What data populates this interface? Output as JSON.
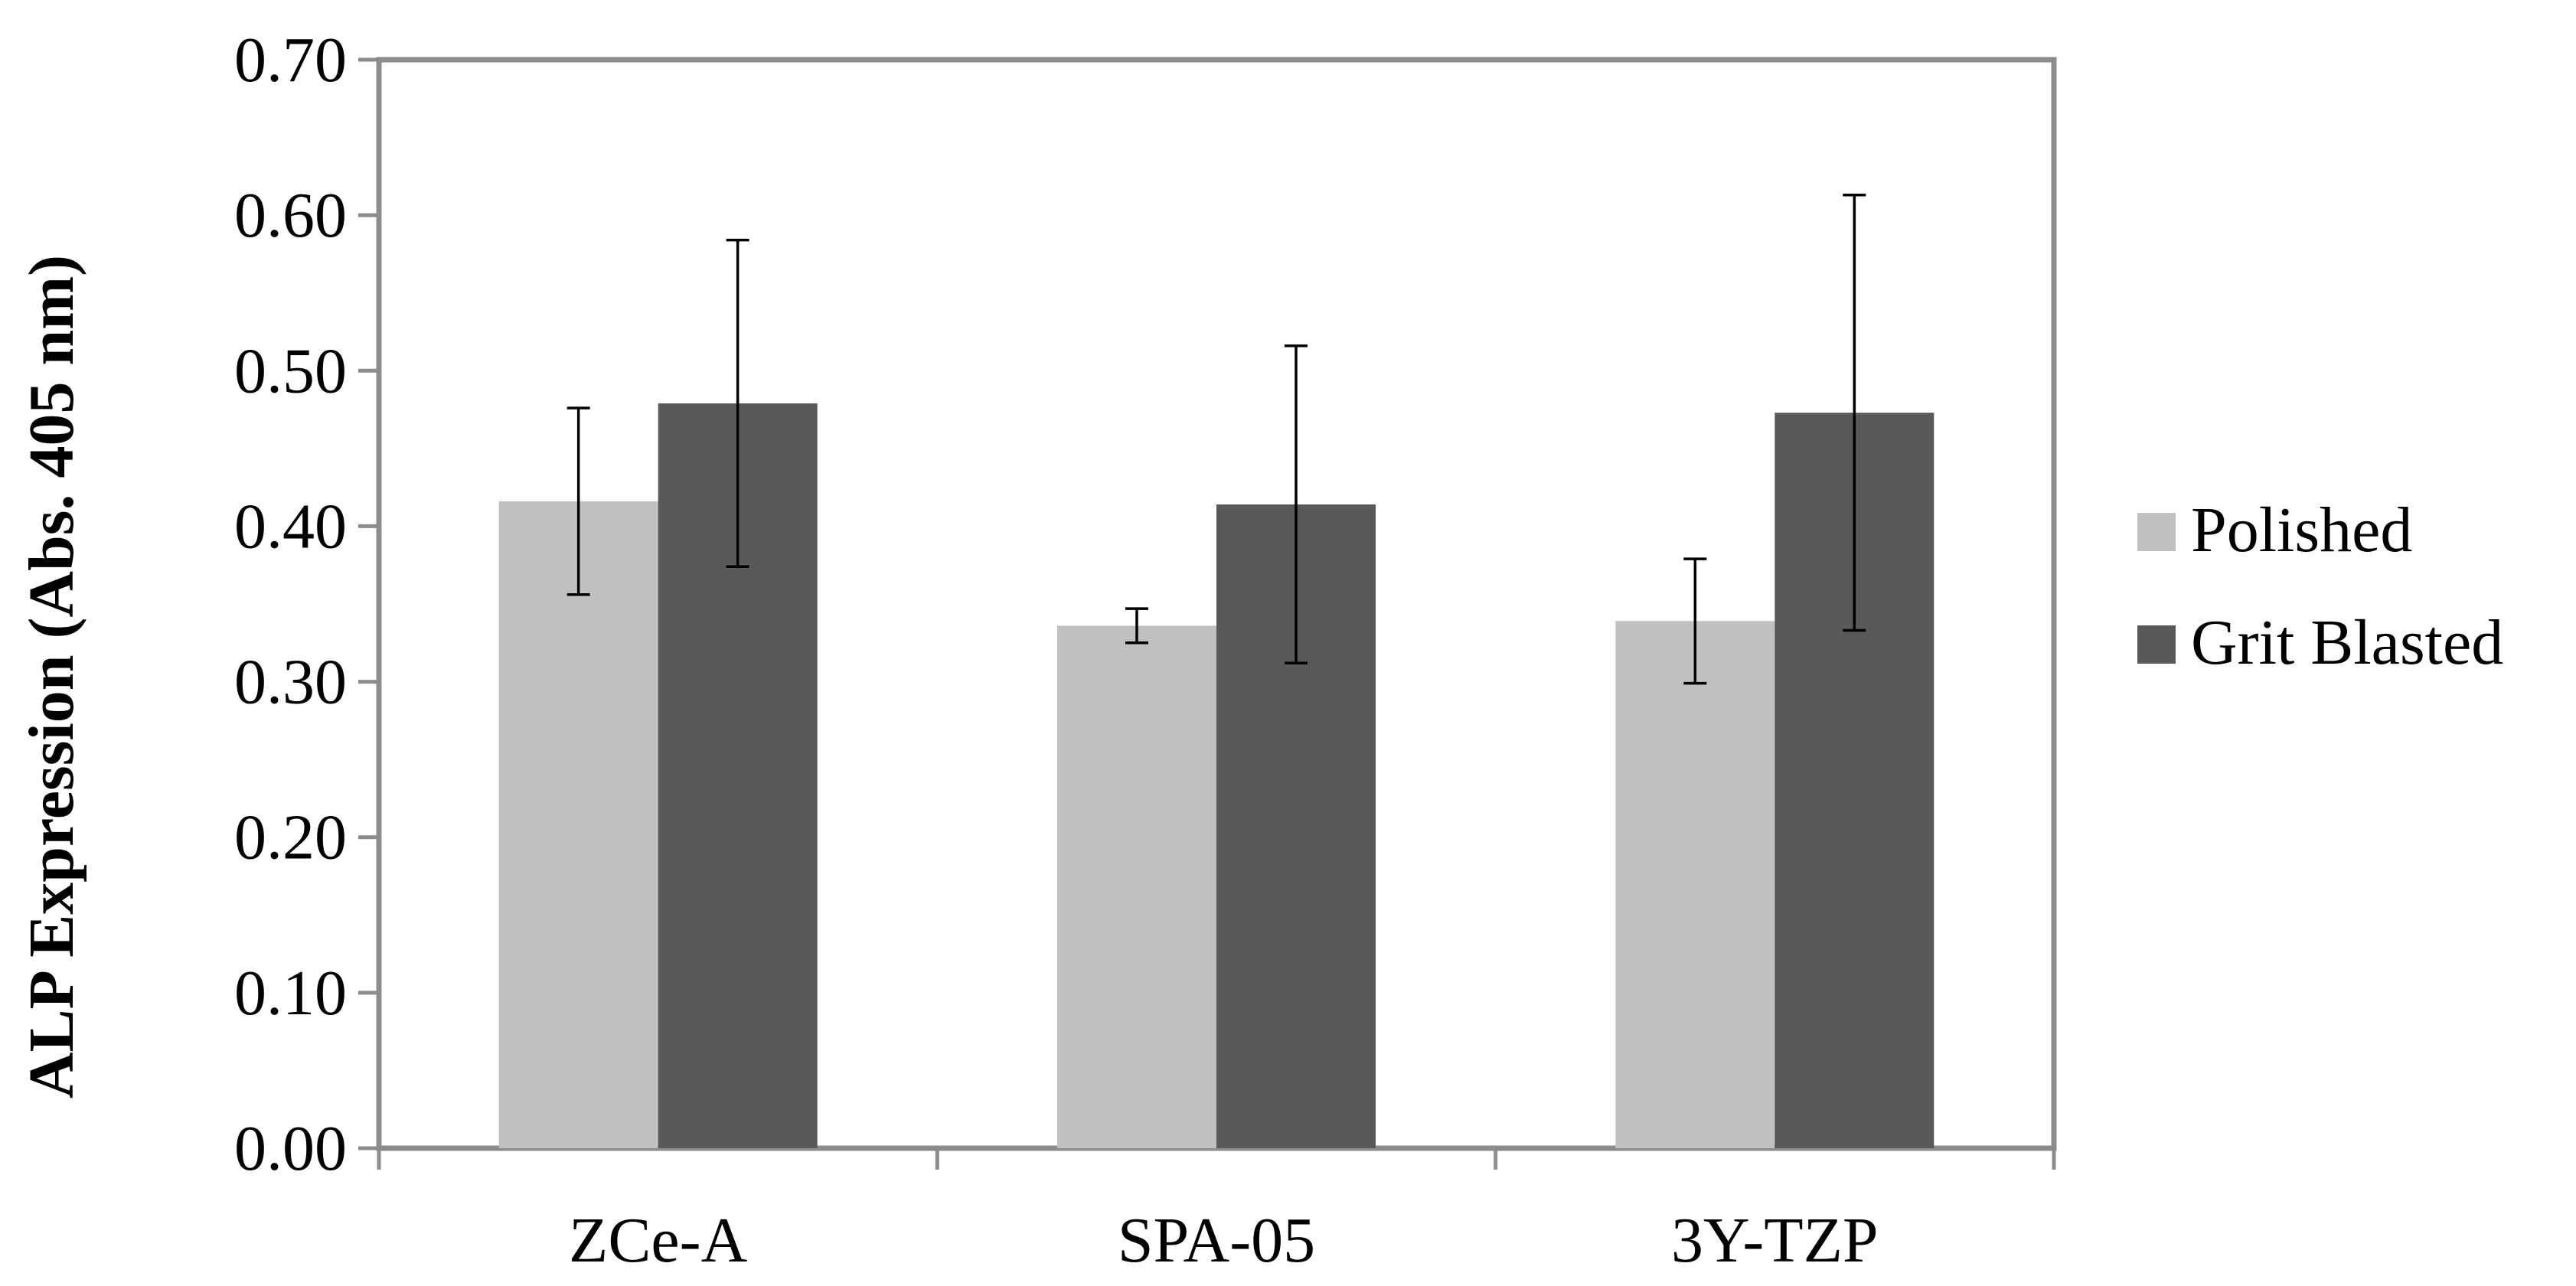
{
  "chart_data": {
    "type": "bar",
    "title": "",
    "xlabel": "",
    "ylabel": "ALP Expression (Abs. 405 nm)",
    "categories": [
      "ZCe-A",
      "SPA-05",
      "3Y-TZP"
    ],
    "series": [
      {
        "name": "Polished",
        "color": "#c0c0c0",
        "values": [
          0.416,
          0.336,
          0.339
        ],
        "errors": [
          0.06,
          0.011,
          0.04
        ]
      },
      {
        "name": "Grit Blasted",
        "color": "#595959",
        "values": [
          0.479,
          0.414,
          0.473
        ],
        "errors": [
          0.105,
          0.102,
          0.14
        ]
      }
    ],
    "ylim": [
      0,
      0.7
    ],
    "yticks": [
      "0.00",
      "0.10",
      "0.20",
      "0.30",
      "0.40",
      "0.50",
      "0.60",
      "0.70"
    ],
    "legend_position": "right",
    "grid": false,
    "frame_color": "#8c8c8c"
  }
}
